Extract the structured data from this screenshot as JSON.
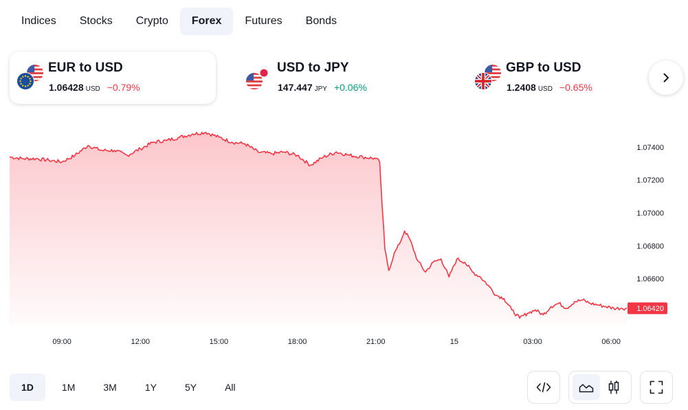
{
  "tabs": [
    {
      "label": "Indices",
      "active": false
    },
    {
      "label": "Stocks",
      "active": false
    },
    {
      "label": "Crypto",
      "active": false
    },
    {
      "label": "Forex",
      "active": true
    },
    {
      "label": "Futures",
      "active": false
    },
    {
      "label": "Bonds",
      "active": false
    }
  ],
  "cards": [
    {
      "title": "EUR to USD",
      "price": "1.06428",
      "currency": "USD",
      "change": "−0.79%",
      "direction": "down",
      "flags": [
        "eu-flag-icon",
        "us-flag-icon"
      ]
    },
    {
      "title": "USD to JPY",
      "price": "147.447",
      "currency": "JPY",
      "change": "+0.06%",
      "direction": "up",
      "flags": [
        "us-flag-icon",
        "jp-flag-icon"
      ]
    },
    {
      "title": "GBP to USD",
      "price": "1.2408",
      "currency": "USD",
      "change": "−0.65%",
      "direction": "down",
      "flags": [
        "uk-flag-icon",
        "us-flag-icon"
      ]
    }
  ],
  "next_button_icon": "chevron-right-icon",
  "chart_data": {
    "type": "area",
    "title": "",
    "xlabel": "",
    "ylabel": "",
    "x_ticks": [
      "09:00",
      "12:00",
      "15:00",
      "18:00",
      "21:00",
      "15",
      "03:00",
      "06:00"
    ],
    "x_tick_hours": [
      9,
      12,
      15,
      18,
      21,
      24,
      27,
      30
    ],
    "y_ticks": [
      "1.07400",
      "1.07200",
      "1.07000",
      "1.06800",
      "1.06600"
    ],
    "y_tick_values": [
      1.074,
      1.072,
      1.07,
      1.068,
      1.066
    ],
    "ylim": [
      1.0632,
      1.0755
    ],
    "xlim_hours": [
      7.0,
      30.6
    ],
    "last_value_label": "1.06420",
    "line_color": "#f23645",
    "fill_color_top": "#f23645",
    "grid": false,
    "series": [
      {
        "x_hours": [
          7.0,
          7.5,
          8.0,
          8.5,
          9.0,
          9.5,
          10.0,
          10.5,
          11.0,
          11.5,
          12.0,
          12.5,
          13.0,
          13.5,
          14.0,
          14.5,
          15.0,
          15.5,
          16.0,
          16.5,
          17.0,
          17.5,
          18.0,
          18.5,
          19.0,
          19.5,
          20.0,
          20.5,
          21.0,
          21.15,
          21.25,
          21.35,
          21.5,
          21.7,
          21.9,
          22.1,
          22.3,
          22.6,
          22.9,
          23.2,
          23.5,
          23.8,
          24.1,
          24.4,
          24.7,
          25.0,
          25.3,
          25.6,
          25.9,
          26.2,
          26.5,
          26.8,
          27.1,
          27.4,
          27.7,
          28.0,
          28.3,
          28.6,
          28.9,
          29.2,
          29.5,
          29.8,
          30.1,
          30.4,
          30.6
        ],
        "values": [
          1.0734,
          1.0733,
          1.0733,
          1.0732,
          1.0731,
          1.0735,
          1.0741,
          1.0738,
          1.0738,
          1.0735,
          1.0739,
          1.0743,
          1.0744,
          1.0746,
          1.0748,
          1.0749,
          1.0746,
          1.0743,
          1.0742,
          1.0737,
          1.0736,
          1.0737,
          1.0735,
          1.0729,
          1.0734,
          1.0737,
          1.0735,
          1.0734,
          1.0733,
          1.0731,
          1.0703,
          1.0678,
          1.0665,
          1.0675,
          1.0681,
          1.0689,
          1.0684,
          1.0671,
          1.0664,
          1.067,
          1.0672,
          1.0661,
          1.0672,
          1.067,
          1.0664,
          1.0661,
          1.0656,
          1.065,
          1.0648,
          1.0641,
          1.0636,
          1.0639,
          1.0641,
          1.0638,
          1.0643,
          1.0645,
          1.0642,
          1.0646,
          1.0647,
          1.0645,
          1.0644,
          1.0643,
          1.0642,
          1.0642,
          1.0642
        ]
      }
    ]
  },
  "ranges": [
    {
      "label": "1D",
      "active": true
    },
    {
      "label": "1M",
      "active": false
    },
    {
      "label": "3M",
      "active": false
    },
    {
      "label": "1Y",
      "active": false
    },
    {
      "label": "5Y",
      "active": false
    },
    {
      "label": "All",
      "active": false
    }
  ],
  "controls": {
    "embed_icon": "code-icon",
    "area_chart_icon": "area-chart-icon",
    "candles_icon": "candlestick-icon",
    "fullscreen_icon": "fullscreen-icon"
  }
}
